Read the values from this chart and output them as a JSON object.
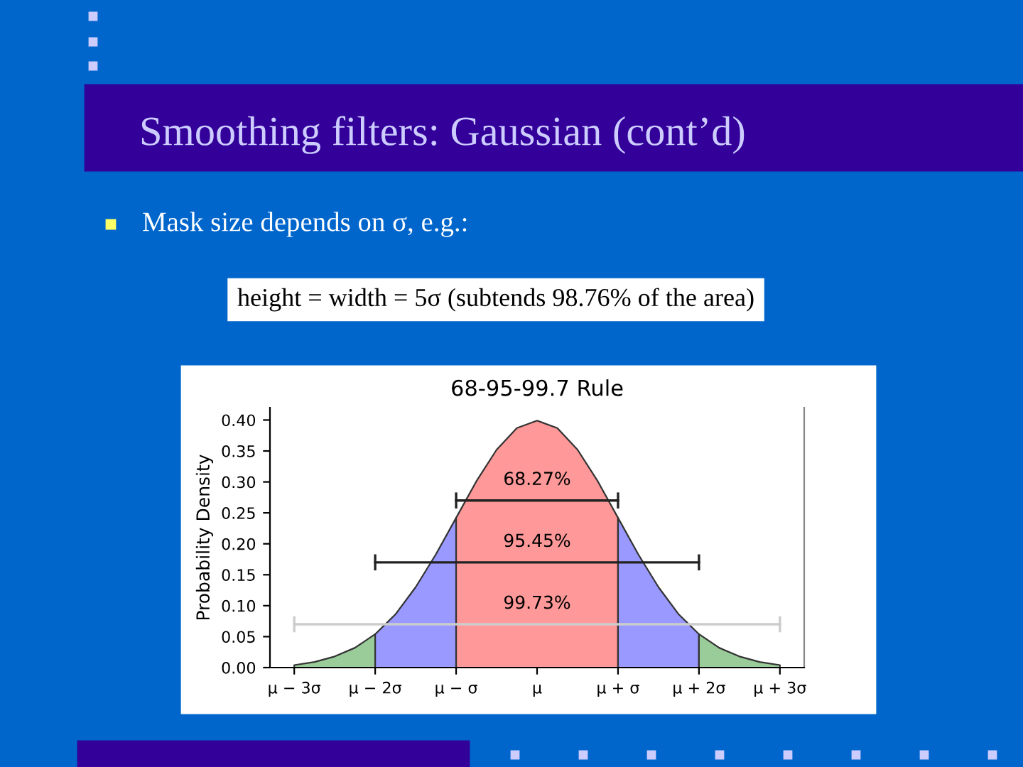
{
  "chart_data": {
    "type": "area",
    "title": "68-95-99.7 Rule",
    "ylabel": "Probability Density",
    "annotations": [
      "Smoothing filters: Gaussian (cont’d)",
      "Mask size depends on σ, e.g.:",
      "height = width = 5σ (subtends 98.76% of the area)"
    ],
    "series": [
      {
        "color": "#99cc99",
        "x": [
          -3,
          -2.75,
          -2.5,
          -2.25,
          -2
        ],
        "values": [
          0.004,
          0.009,
          0.018,
          0.032,
          0.054
        ]
      },
      {
        "color": "#9999ff",
        "x": [
          -2,
          -1.75,
          -1.5,
          -1.25,
          -1
        ],
        "values": [
          0.054,
          0.086,
          0.13,
          0.183,
          0.242
        ]
      },
      {
        "color": "#ff9999",
        "x": [
          -1,
          -0.75,
          -0.5,
          -0.25,
          0,
          0.25,
          0.5,
          0.75,
          1
        ],
        "values": [
          0.242,
          0.301,
          0.352,
          0.387,
          0.399,
          0.387,
          0.352,
          0.301,
          0.242
        ]
      },
      {
        "color": "#9999ff",
        "x": [
          1,
          1.25,
          1.5,
          1.75,
          2
        ],
        "values": [
          0.242,
          0.183,
          0.13,
          0.086,
          0.054
        ]
      },
      {
        "color": "#99cc99",
        "x": [
          2,
          2.25,
          2.5,
          2.75,
          3
        ],
        "values": [
          0.054,
          0.032,
          0.018,
          0.009,
          0.004
        ]
      },
      {
        "type": "line",
        "name": "68.27%",
        "color": "#222222",
        "x": [
          -1,
          1
        ],
        "values": [
          0.27,
          0.27
        ],
        "errors": [
          0.013,
          0.013
        ]
      },
      {
        "type": "line",
        "name": "95.45%",
        "color": "#222222",
        "x": [
          -2,
          2
        ],
        "values": [
          0.17,
          0.17
        ],
        "errors": [
          0.013,
          0.013
        ]
      },
      {
        "type": "line",
        "name": "99.73%",
        "color": "#cccccc",
        "x": [
          -3,
          3
        ],
        "values": [
          0.07,
          0.07
        ],
        "errors": [
          0.013,
          0.013
        ]
      }
    ],
    "xlim": [
      -3.3,
      3.3
    ],
    "ylim": [
      0,
      0.42
    ],
    "xticks": [
      {
        "value": -3,
        "label": "μ − 3σ"
      },
      {
        "value": -2,
        "label": "μ − 2σ"
      },
      {
        "value": -1,
        "label": "μ − σ"
      },
      {
        "value": 0,
        "label": "μ"
      },
      {
        "value": 1,
        "label": "μ + σ"
      },
      {
        "value": 2,
        "label": "μ + 2σ"
      },
      {
        "value": 3,
        "label": "μ + 3σ"
      }
    ],
    "yticks": [
      {
        "value": 0,
        "label": "0.00"
      },
      {
        "value": 0.05,
        "label": "0.05"
      },
      {
        "value": 0.1,
        "label": "0.10"
      },
      {
        "value": 0.15,
        "label": "0.15"
      },
      {
        "value": 0.2,
        "label": "0.20"
      },
      {
        "value": 0.25,
        "label": "0.25"
      },
      {
        "value": 0.3,
        "label": "0.30"
      },
      {
        "value": 0.35,
        "label": "0.35"
      },
      {
        "value": 0.4,
        "label": "0.40"
      }
    ],
    "grid": false,
    "legend": false
  }
}
